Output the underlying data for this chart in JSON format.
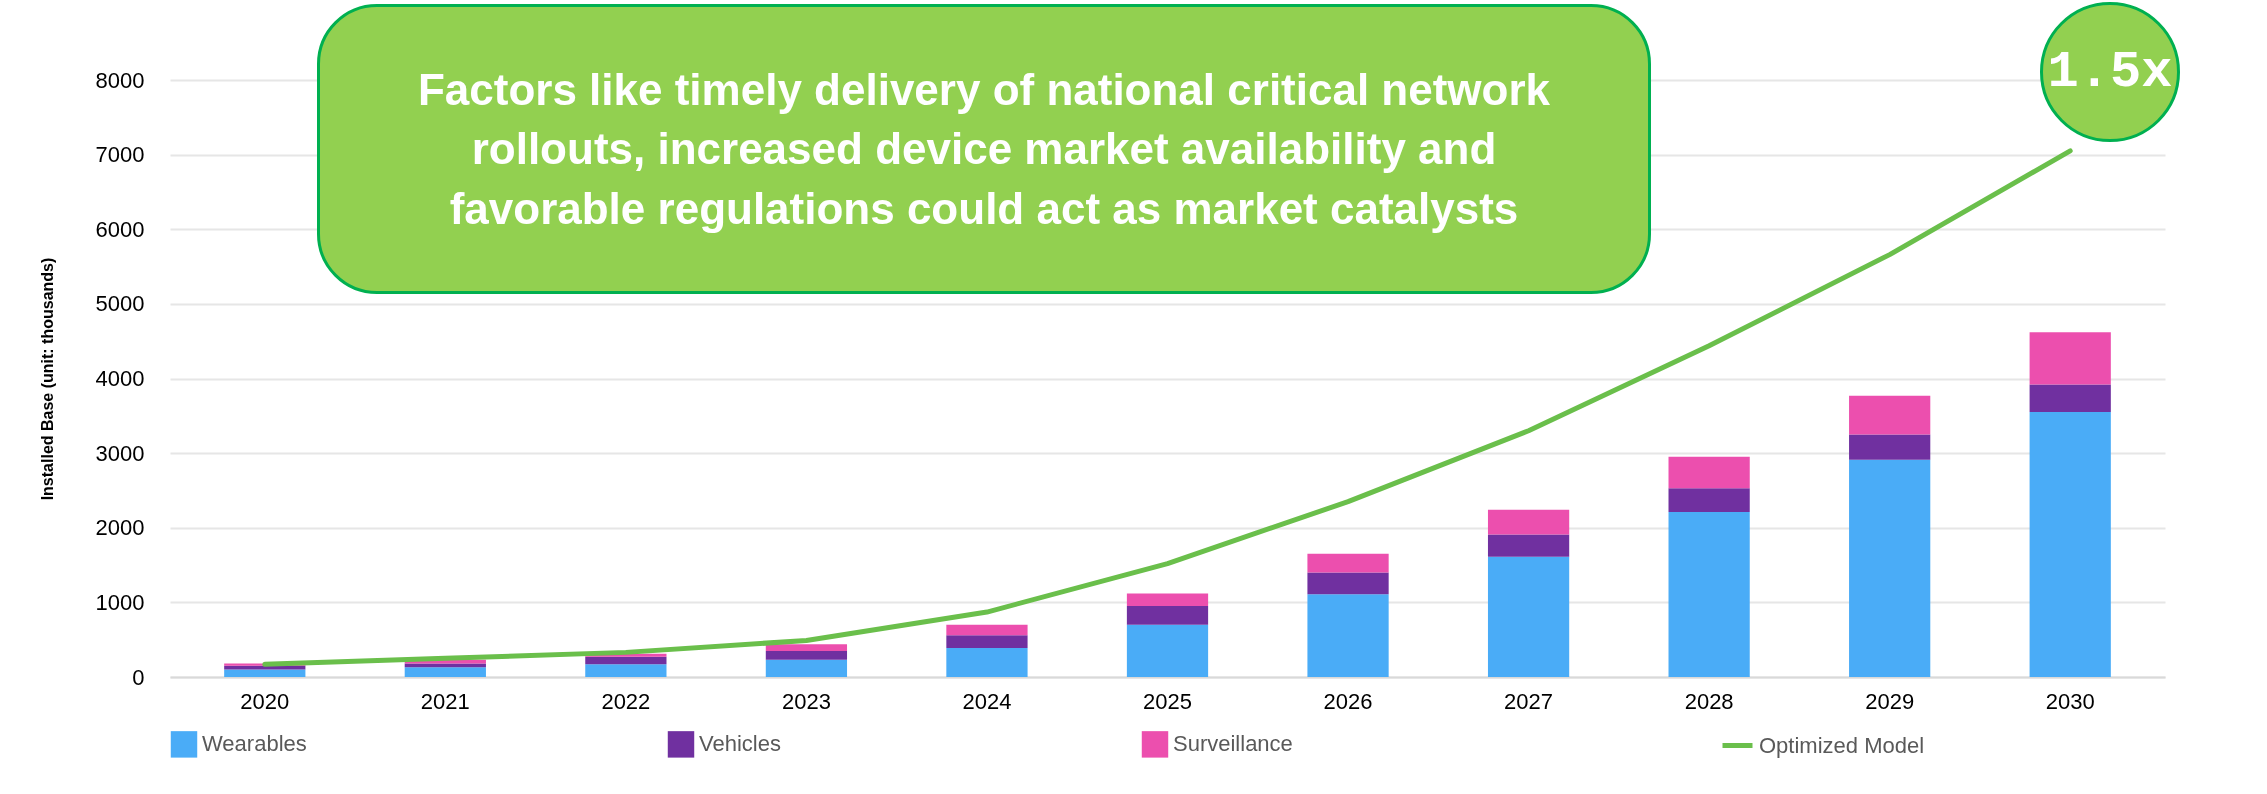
{
  "chart_data": {
    "type": "bar",
    "stacked": true,
    "ylabel": "Installed Base (unit: thousands)",
    "categories": [
      "2020",
      "2021",
      "2022",
      "2023",
      "2024",
      "2025",
      "2026",
      "2027",
      "2028",
      "2029",
      "2030"
    ],
    "series": [
      {
        "name": "Wearables",
        "color": "#4aacf7",
        "values": [
          100,
          130,
          170,
          230,
          390,
          700,
          1110,
          1610,
          2210,
          2910,
          3550
        ]
      },
      {
        "name": "Vehicles",
        "color": "#7030a0",
        "values": [
          50,
          50,
          100,
          120,
          170,
          250,
          290,
          300,
          320,
          340,
          370
        ]
      },
      {
        "name": "Surveillance",
        "color": "#ec4fae",
        "values": [
          30,
          50,
          40,
          90,
          140,
          170,
          250,
          330,
          420,
          520,
          700
        ]
      },
      {
        "name": "Optimized Model",
        "color": "#6abf4b",
        "type": "line",
        "values": [
          170,
          250,
          330,
          490,
          870,
          1520,
          2350,
          3300,
          4440,
          5660,
          7050
        ]
      }
    ],
    "ylim": [
      0,
      8000
    ],
    "yticks": [
      0,
      1000,
      2000,
      3000,
      4000,
      5000,
      6000,
      7000,
      8000
    ],
    "grid": "y",
    "legend": "bottom",
    "annotations": [
      "Factors like timely delivery of national critical network rollouts, increased device market availability and favorable regulations could act as market catalysts",
      "1.5x"
    ]
  }
}
